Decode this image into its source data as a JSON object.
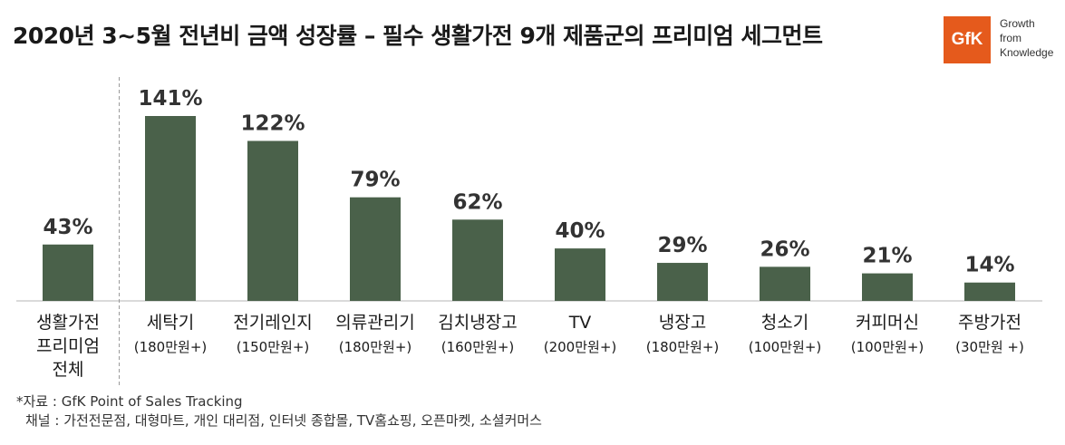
{
  "title": "2020년 3~5월 전년비 금액 성장률 – 필수 생활가전 9개 제품군의 프리미엄 세그먼트",
  "logo": {
    "mark": "GfK",
    "tagline": [
      "Growth",
      "from",
      "Knowledge"
    ],
    "color": "#e55a1c"
  },
  "chart_data": {
    "type": "bar",
    "categories": [
      [
        "생활가전",
        "프리미엄",
        "전체"
      ],
      [
        "세탁기",
        "(180만원+)"
      ],
      [
        "전기레인지",
        "(150만원+)"
      ],
      [
        "의류관리기",
        "(180만원+)"
      ],
      [
        "김치냉장고",
        "(160만원+)"
      ],
      [
        "TV",
        "(200만원+)"
      ],
      [
        "냉장고",
        "(180만원+)"
      ],
      [
        "청소기",
        "(100만원+)"
      ],
      [
        "커피머신",
        "(100만원+)"
      ],
      [
        "주방가전",
        "(30만원 +)"
      ]
    ],
    "values": [
      43,
      141,
      122,
      79,
      62,
      40,
      29,
      26,
      21,
      14
    ],
    "value_labels": [
      "43%",
      "141%",
      "122%",
      "79%",
      "62%",
      "40%",
      "29%",
      "26%",
      "21%",
      "14%"
    ],
    "unit": "%",
    "ylim": [
      0,
      141
    ],
    "grid": false,
    "legend": "none",
    "bar_color": "#4a614a",
    "separator_after_index": 0
  },
  "source": {
    "line1": "*자료 : GfK Point of Sales Tracking",
    "line2": "채널 : 가전전문점, 대형마트, 개인 대리점, 인터넷 종합몰, TV홈쇼핑, 오픈마켓, 소셜커머스"
  }
}
